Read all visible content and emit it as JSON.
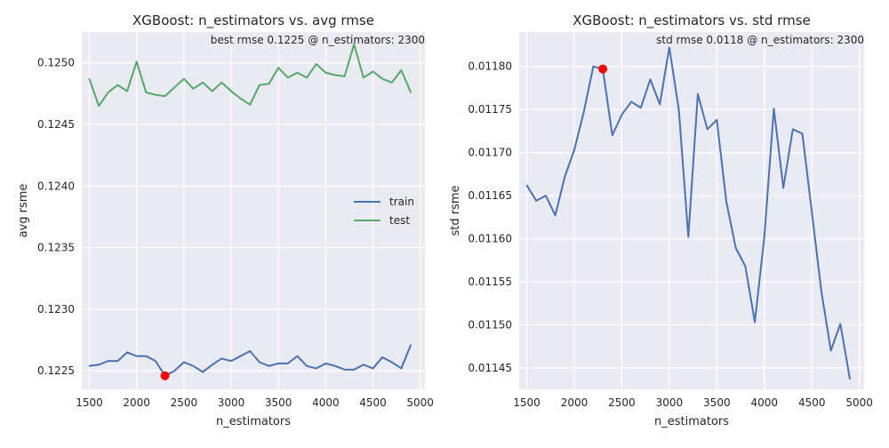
{
  "chart_data": [
    {
      "type": "line",
      "title": "XGBoost: n_estimators vs. avg rmse",
      "xlabel": "n_estimators",
      "ylabel": "avg rsme",
      "annotation": "best rmse 0.1225 @ n_estimators: 2300",
      "xlim": [
        1420,
        5050
      ],
      "ylim": [
        0.12235,
        0.12525
      ],
      "xticks": [
        1500,
        2000,
        2500,
        3000,
        3500,
        4000,
        4500,
        5000
      ],
      "xtick_labels": [
        "1500",
        "2000",
        "2500",
        "3000",
        "3500",
        "4000",
        "4500",
        "5000"
      ],
      "yticks": [
        0.1225,
        0.123,
        0.1235,
        0.124,
        0.1245,
        0.125
      ],
      "ytick_labels": [
        "0.1225",
        "0.1230",
        "0.1235",
        "0.1240",
        "0.1245",
        "0.1250"
      ],
      "grid": true,
      "legend": "center-right",
      "x": [
        1500,
        1600,
        1700,
        1800,
        1900,
        2000,
        2100,
        2200,
        2300,
        2400,
        2500,
        2600,
        2700,
        2800,
        2900,
        3000,
        3100,
        3200,
        3300,
        3400,
        3500,
        3600,
        3700,
        3800,
        3900,
        4000,
        4100,
        4200,
        4300,
        4400,
        4500,
        4600,
        4700,
        4800,
        4900
      ],
      "series": [
        {
          "name": "train",
          "color": "#4c72b0",
          "values": [
            0.12254,
            0.12255,
            0.12258,
            0.12258,
            0.12265,
            0.12262,
            0.12262,
            0.12258,
            0.12246,
            0.1225,
            0.12257,
            0.12254,
            0.12249,
            0.12255,
            0.1226,
            0.12258,
            0.12262,
            0.12266,
            0.12257,
            0.12254,
            0.12256,
            0.12256,
            0.12262,
            0.12254,
            0.12252,
            0.12256,
            0.12254,
            0.12251,
            0.12251,
            0.12255,
            0.12252,
            0.12261,
            0.12257,
            0.12252,
            0.12271
          ]
        },
        {
          "name": "test",
          "color": "#55a868",
          "values": [
            0.12487,
            0.12465,
            0.12476,
            0.12482,
            0.12477,
            0.12501,
            0.12476,
            0.12474,
            0.12473,
            0.1248,
            0.12487,
            0.12479,
            0.12484,
            0.12477,
            0.12484,
            0.12477,
            0.12471,
            0.12466,
            0.12482,
            0.12483,
            0.12496,
            0.12488,
            0.12492,
            0.12488,
            0.12499,
            0.12492,
            0.1249,
            0.12489,
            0.12515,
            0.12488,
            0.12493,
            0.12487,
            0.12484,
            0.12494,
            0.12476
          ]
        }
      ],
      "highlight": {
        "x": 2300,
        "y": 0.12246,
        "color": "#ff0000"
      }
    },
    {
      "type": "line",
      "title": "XGBoost: n_estimators vs. std rmse",
      "xlabel": "n_estimators",
      "ylabel": "std rsme",
      "annotation": "std rmse 0.0118 @ n_estimators: 2300",
      "xlim": [
        1420,
        5050
      ],
      "ylim": [
        0.011425,
        0.01184
      ],
      "xticks": [
        1500,
        2000,
        2500,
        3000,
        3500,
        4000,
        4500,
        5000
      ],
      "xtick_labels": [
        "1500",
        "2000",
        "2500",
        "3000",
        "3500",
        "4000",
        "4500",
        "5000"
      ],
      "yticks": [
        0.01145,
        0.0115,
        0.01155,
        0.0116,
        0.01165,
        0.0117,
        0.01175,
        0.0118
      ],
      "ytick_labels": [
        "0.01145",
        "0.01150",
        "0.01155",
        "0.01160",
        "0.01165",
        "0.01170",
        "0.01175",
        "0.01180"
      ],
      "grid": true,
      "x": [
        1500,
        1600,
        1700,
        1800,
        1900,
        2000,
        2100,
        2200,
        2300,
        2400,
        2500,
        2600,
        2700,
        2800,
        2900,
        3000,
        3100,
        3200,
        3300,
        3400,
        3500,
        3600,
        3700,
        3800,
        3900,
        4000,
        4100,
        4200,
        4300,
        4400,
        4500,
        4600,
        4700,
        4800,
        4900
      ],
      "series": [
        {
          "color": "#4c72b0",
          "values": [
            0.011662,
            0.011644,
            0.01165,
            0.011627,
            0.011672,
            0.011703,
            0.011747,
            0.0118,
            0.011797,
            0.01172,
            0.011744,
            0.011759,
            0.011752,
            0.011785,
            0.011756,
            0.011822,
            0.01175,
            0.011602,
            0.011768,
            0.011727,
            0.011738,
            0.011643,
            0.011589,
            0.011568,
            0.011503,
            0.011602,
            0.011751,
            0.011659,
            0.011727,
            0.011722,
            0.011631,
            0.011539,
            0.01147,
            0.011501,
            0.011437
          ]
        }
      ],
      "highlight": {
        "x": 2300,
        "y": 0.011797,
        "color": "#ff0000"
      }
    }
  ]
}
